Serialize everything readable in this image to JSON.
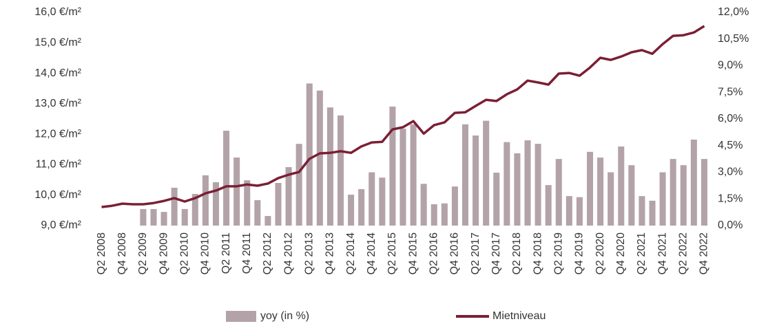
{
  "chart_data": {
    "type": "bar",
    "categories": [
      "Q2 2008",
      null,
      "Q4 2008",
      null,
      "Q2 2009",
      null,
      "Q4 2009",
      null,
      "Q2 2010",
      null,
      "Q4 2010",
      null,
      "Q2 2011",
      null,
      "Q4 2011",
      null,
      "Q2 2012",
      null,
      "Q4 2012",
      null,
      "Q2 2013",
      null,
      "Q4 2013",
      null,
      "Q2 2014",
      null,
      "Q4 2014",
      null,
      "Q2 2015",
      null,
      "Q4 2015",
      null,
      "Q2 2016",
      null,
      "Q4 2016",
      null,
      "Q2 2017",
      null,
      "Q4 2017",
      null,
      "Q2 2018",
      null,
      "Q4 2018",
      null,
      "Q2 2019",
      null,
      "Q4 2019",
      null,
      "Q2 2020",
      null,
      "Q4 2020",
      null,
      "Q2 2021",
      null,
      "Q4 2021",
      null,
      "Q2 2022",
      null,
      "Q4 2022"
    ],
    "series": [
      {
        "name": "yoy (in %)",
        "type": "bar",
        "axis": "y2",
        "color": "#b3a3a9",
        "values": [
          null,
          null,
          null,
          null,
          0.93,
          0.93,
          0.77,
          2.13,
          0.93,
          1.78,
          2.83,
          2.44,
          5.34,
          3.83,
          2.55,
          1.43,
          0.54,
          2.4,
          3.29,
          4.6,
          8.0,
          7.6,
          6.65,
          6.2,
          1.74,
          2.05,
          3.0,
          2.7,
          6.7,
          5.45,
          5.7,
          2.35,
          1.2,
          1.25,
          2.2,
          5.7,
          5.07,
          5.9,
          2.98,
          4.7,
          4.07,
          4.8,
          4.6,
          2.28,
          3.75,
          1.66,
          1.6,
          4.15,
          3.83,
          3.0,
          4.45,
          3.4,
          1.66,
          1.4,
          3.0,
          3.75,
          3.4,
          4.84,
          3.75
        ]
      },
      {
        "name": "Mietniveau",
        "type": "line",
        "axis": "y",
        "color": "#7a1f35",
        "values": [
          9.61,
          9.65,
          9.72,
          9.7,
          9.7,
          9.74,
          9.81,
          9.9,
          9.79,
          9.9,
          10.06,
          10.15,
          10.29,
          10.29,
          10.35,
          10.31,
          10.38,
          10.56,
          10.67,
          10.76,
          11.19,
          11.37,
          11.39,
          11.44,
          11.39,
          11.6,
          11.73,
          11.75,
          12.16,
          12.23,
          12.43,
          12.02,
          12.3,
          12.39,
          12.7,
          12.72,
          12.93,
          13.13,
          13.09,
          13.31,
          13.47,
          13.76,
          13.7,
          13.63,
          13.99,
          14.01,
          13.92,
          14.19,
          14.51,
          14.44,
          14.55,
          14.69,
          14.76,
          14.64,
          14.96,
          15.23,
          15.25,
          15.34,
          15.55
        ]
      }
    ],
    "ylim": [
      9,
      16
    ],
    "yticks": [
      {
        "value": 9,
        "label": "9,0 €/m²"
      },
      {
        "value": 10,
        "label": "10,0 €/m²"
      },
      {
        "value": 11,
        "label": "11,0 €/m²"
      },
      {
        "value": 12,
        "label": "12,0 €/m²"
      },
      {
        "value": 13,
        "label": "13,0 €/m²"
      },
      {
        "value": 14,
        "label": "14,0 €/m²"
      },
      {
        "value": 15,
        "label": "15,0 €/m²"
      },
      {
        "value": 16,
        "label": "16,0 €/m²"
      }
    ],
    "y2lim": [
      0,
      12
    ],
    "y2ticks": [
      {
        "value": 0,
        "label": "0,0%"
      },
      {
        "value": 1.5,
        "label": "1,5%"
      },
      {
        "value": 3,
        "label": "3,0%"
      },
      {
        "value": 4.5,
        "label": "4,5%"
      },
      {
        "value": 6,
        "label": "6,0%"
      },
      {
        "value": 7.5,
        "label": "7,5%"
      },
      {
        "value": 9,
        "label": "9,0%"
      },
      {
        "value": 10.5,
        "label": "10,5%"
      },
      {
        "value": 12,
        "label": "12,0%"
      }
    ],
    "grid": false,
    "legend": "bottom"
  }
}
